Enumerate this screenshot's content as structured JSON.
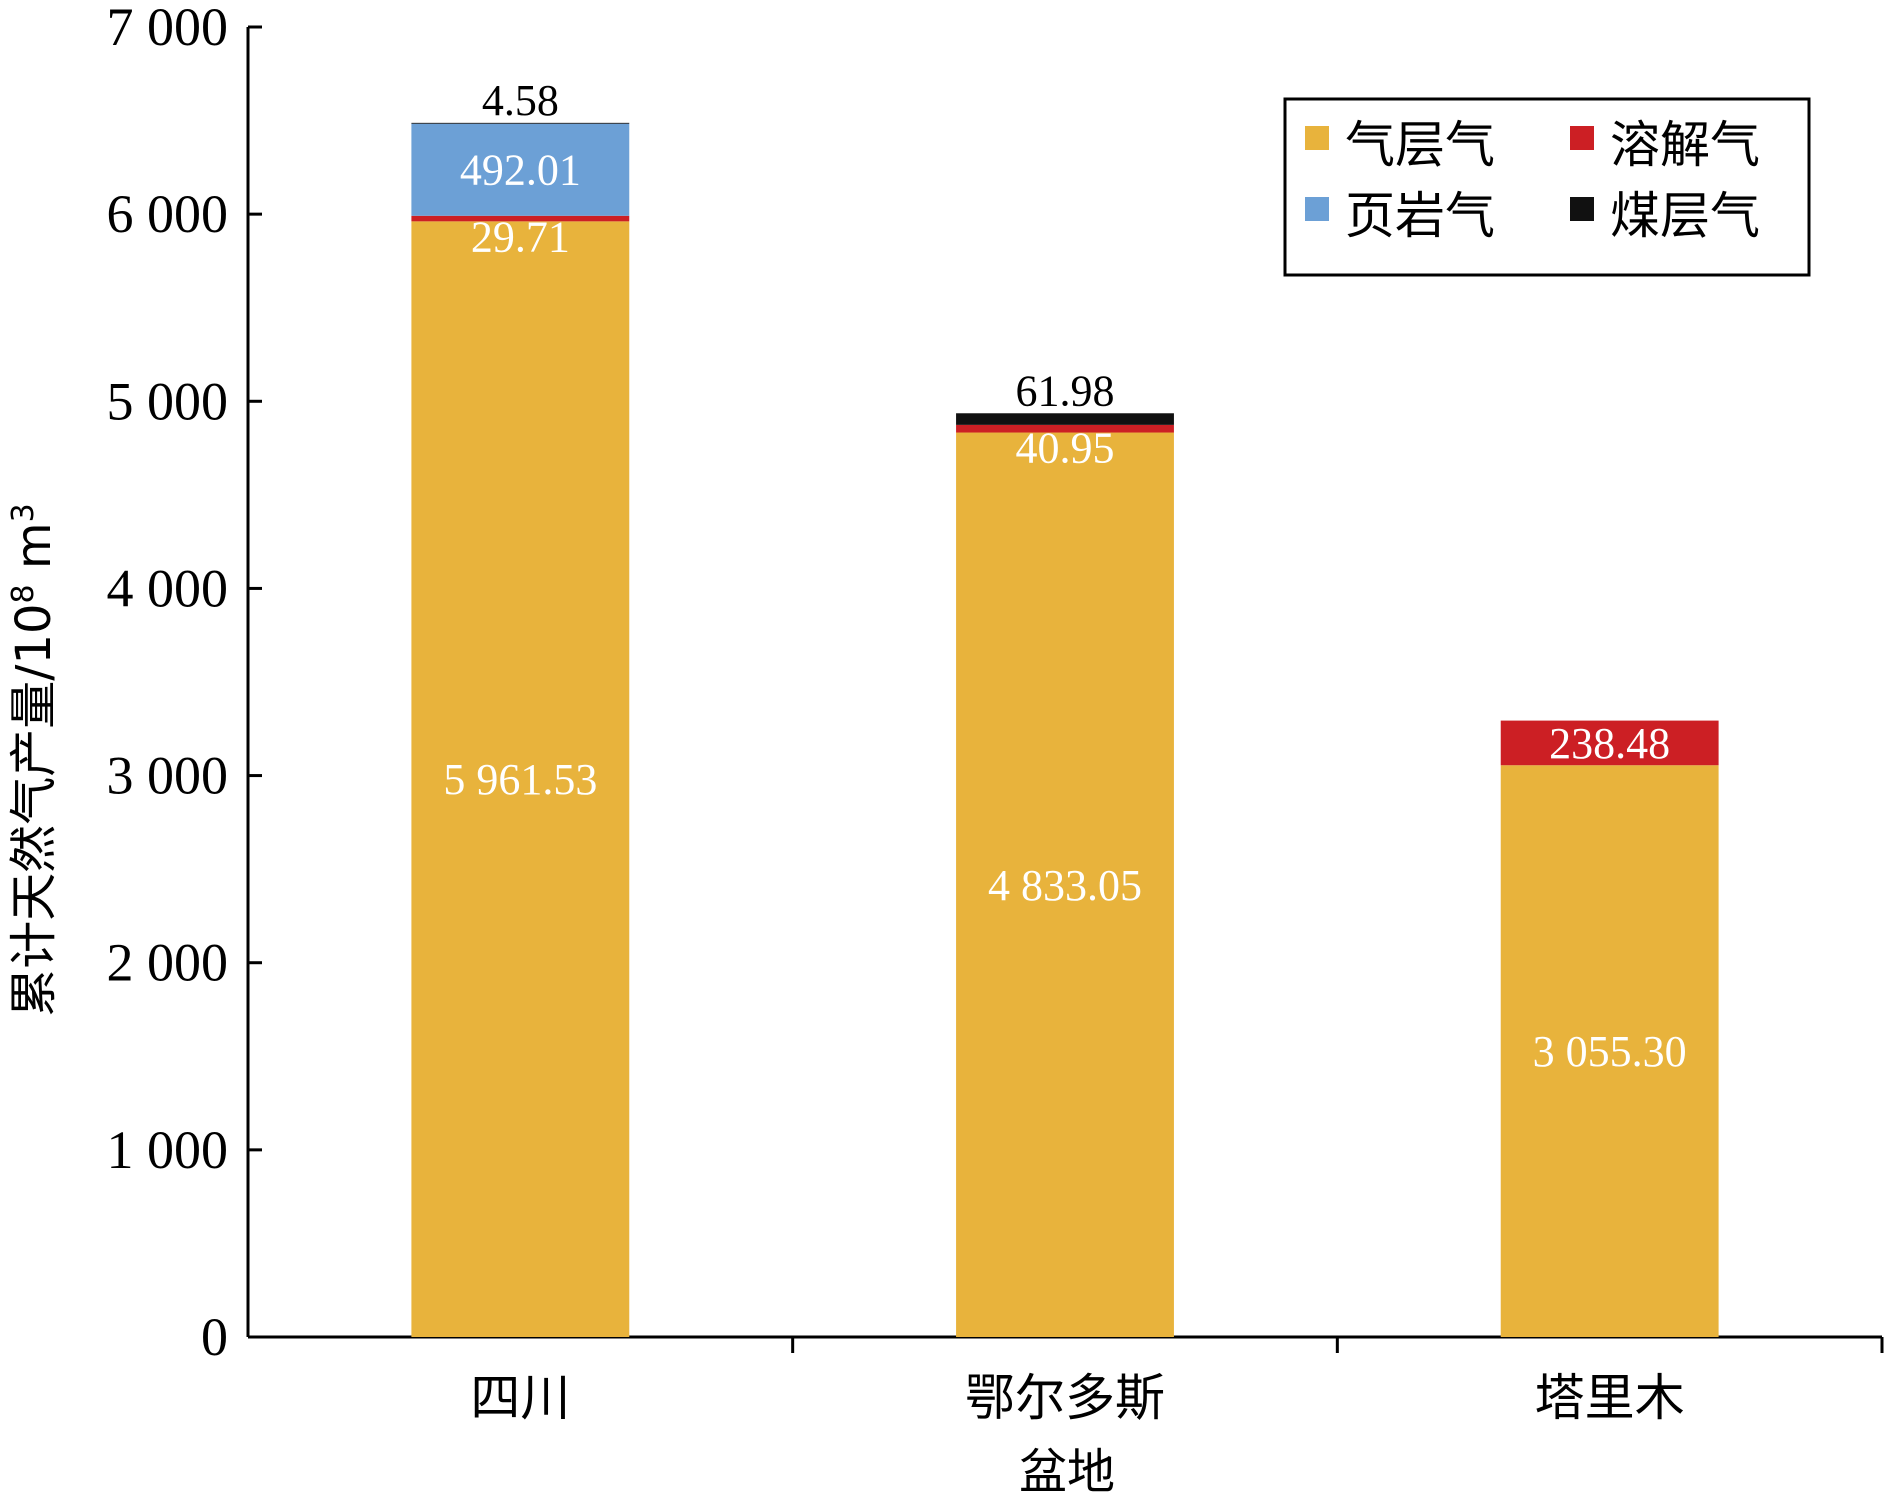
{
  "chart_data": {
    "type": "bar",
    "stacked": true,
    "categories": [
      "四川",
      "鄂尔多斯",
      "塔里木"
    ],
    "xlabel": "盆地",
    "ylabel_main": "累计天然气产量/10",
    "ylabel_sup": "8",
    "ylabel_unit": " m",
    "ylabel_unit_sup": "3",
    "ylim": [
      0,
      7000
    ],
    "yticks": [
      0,
      1000,
      2000,
      3000,
      4000,
      5000,
      6000,
      7000
    ],
    "ytick_labels": [
      "0",
      "1 000",
      "2 000",
      "3 000",
      "4 000",
      "5 000",
      "6 000",
      "7 000"
    ],
    "grid": false,
    "legend_position": "top-right",
    "series": [
      {
        "name": "气层气",
        "color": "#E8B33C",
        "values": [
          5961.53,
          4833.05,
          3055.3
        ],
        "labels": [
          "5 961.53",
          "4 833.05",
          "3 055.30"
        ]
      },
      {
        "name": "溶解气",
        "color": "#CC1F24",
        "values": [
          29.71,
          40.95,
          238.48
        ],
        "labels": [
          "29.71",
          "40.95",
          "238.48"
        ]
      },
      {
        "name": "页岩气",
        "color": "#6CA0D6",
        "values": [
          492.01,
          0,
          0
        ],
        "labels": [
          "492.01",
          "",
          ""
        ]
      },
      {
        "name": "煤层气",
        "color": "#111111",
        "values": [
          4.58,
          61.98,
          0
        ],
        "labels": [
          "4.58",
          "61.98",
          ""
        ]
      }
    ]
  }
}
